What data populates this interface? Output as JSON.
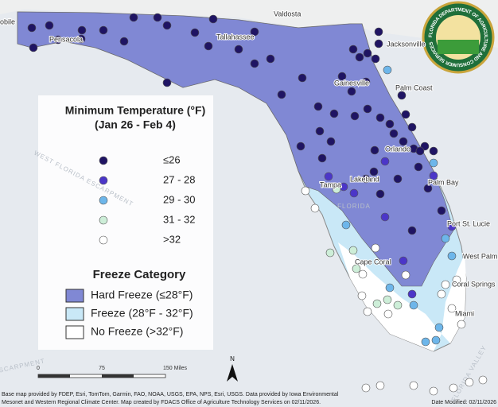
{
  "legend": {
    "title": "Minimum Temperature (°F)",
    "subtitle": "(Jan 26 - Feb 4)",
    "items": [
      {
        "label": "≤26",
        "color": "#1f1463"
      },
      {
        "label": "27 - 28",
        "color": "#4b36c8"
      },
      {
        "label": "29 - 30",
        "color": "#6db6ea"
      },
      {
        "label": "31 - 32",
        "color": "#cdeed8"
      },
      {
        "label": ">32",
        "color": "#ffffff"
      }
    ]
  },
  "freeze_legend": {
    "title": "Freeze Category",
    "items": [
      {
        "label": "Hard Freeze (≤28°F)",
        "color": "#8088d4"
      },
      {
        "label": "Freeze (28°F - 32°F)",
        "color": "#c9e8f7"
      },
      {
        "label": "No Freeze (>32°F)",
        "color": "#ffffff"
      }
    ]
  },
  "cities": [
    "Pensacola",
    "Tallahassee",
    "Jacksonville",
    "Gainesville",
    "Palm Coast",
    "Orlando",
    "Tampa",
    "Lakeland",
    "Palm Bay",
    "Port St. Lucie",
    "West Palm",
    "Cape Coral",
    "Coral Springs",
    "Miami",
    "Valdosta",
    "obile"
  ],
  "water_labels": [
    "WEST FLORIDA ESCARPMENT",
    "FLORIDA",
    "FLORIDA VALLEY",
    "E ESCARPMENT"
  ],
  "scale": [
    "0",
    "75",
    "150 Miles"
  ],
  "north": "N",
  "credit": [
    "Base map provided by FDEP, Esri, TomTom, Garmin, FAO, NOAA, USGS, EPA, NPS, Esri, USGS. Data provided by Iowa Environmental",
    "Mesonet and Western Regional Climate Center. Map created by FDACS Office of Agriculture Technology Services on 02/11/2026."
  ],
  "date": "Date Modified: 02/11/2026",
  "seal": "FLORIDA DEPARTMENT OF AGRICULTURE AND CONSUMER SERVICES"
}
